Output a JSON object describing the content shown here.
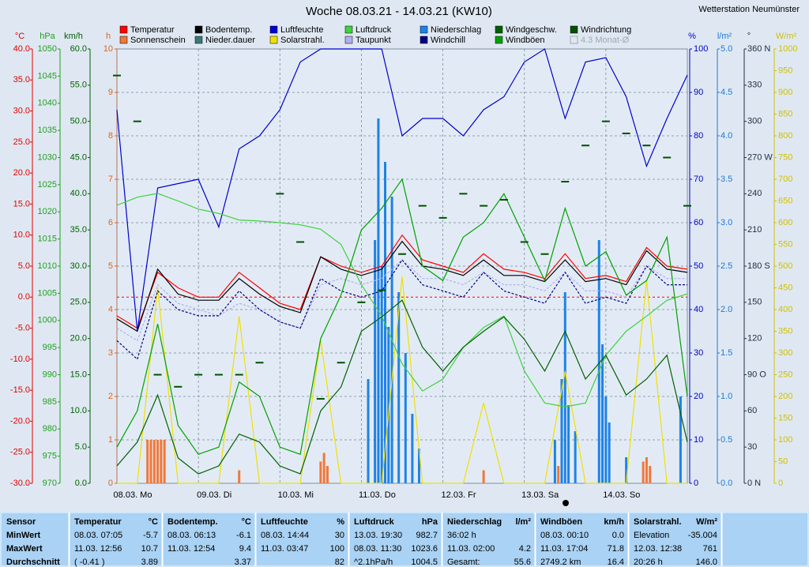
{
  "chart_data": {
    "type": "line",
    "title": "Woche 08.03.21 - 14.03.21 (KW10)",
    "subtitle": "Wetterstation Neumünster",
    "legend_extra": "4.3 Monat-Ø",
    "xlim": [
      0,
      168
    ],
    "xticks": [
      {
        "value": 0,
        "label": "08.03. Mo"
      },
      {
        "value": 24,
        "label": "09.03. Di"
      },
      {
        "value": 48,
        "label": "10.03. Mi"
      },
      {
        "value": 72,
        "label": "11.03. Do"
      },
      {
        "value": 96,
        "label": "12.03. Fr"
      },
      {
        "value": 120,
        "label": "13.03. Sa"
      },
      {
        "value": 144,
        "label": "14.03. So"
      }
    ],
    "x": [
      0,
      6,
      12,
      18,
      24,
      30,
      36,
      42,
      48,
      54,
      60,
      66,
      72,
      78,
      84,
      90,
      96,
      102,
      108,
      114,
      120,
      126,
      132,
      138,
      144,
      150,
      156,
      162,
      168
    ],
    "axes": [
      {
        "unit": "°C",
        "color": "#e00000",
        "lim": [
          -30,
          40
        ],
        "ticks": [
          {
            "value": -30,
            "label": "-30.0"
          },
          {
            "value": -25,
            "label": "-25.0"
          },
          {
            "value": -20,
            "label": "-20.0"
          },
          {
            "value": -15,
            "label": "-15.0"
          },
          {
            "value": -10,
            "label": "-10.0"
          },
          {
            "value": -5,
            "label": "-5.0"
          },
          {
            "value": 0,
            "label": "0.0"
          },
          {
            "value": 5,
            "label": "5.0"
          },
          {
            "value": 10,
            "label": "10.0"
          },
          {
            "value": 15,
            "label": "15.0"
          },
          {
            "value": 20,
            "label": "20.0"
          },
          {
            "value": 25,
            "label": "25.0"
          },
          {
            "value": 30,
            "label": "30.0"
          },
          {
            "value": 35,
            "label": "35.0"
          },
          {
            "value": 40,
            "label": "40.0"
          }
        ]
      },
      {
        "unit": "hPa",
        "color": "#20a020",
        "lim": [
          970,
          1050
        ],
        "ticks": [
          970,
          975,
          980,
          985,
          990,
          995,
          1000,
          1005,
          1010,
          1015,
          1020,
          1025,
          1030,
          1035,
          1040,
          1045,
          1050
        ]
      },
      {
        "unit": "km/h",
        "color": "#006000",
        "lim": [
          0,
          60
        ],
        "ticks": [
          {
            "value": 0,
            "label": "0.0"
          },
          {
            "value": 5,
            "label": "5.0"
          },
          {
            "value": 10,
            "label": "10.0"
          },
          {
            "value": 15,
            "label": "15.0"
          },
          {
            "value": 20,
            "label": "20.0"
          },
          {
            "value": 25,
            "label": "25.0"
          },
          {
            "value": 30,
            "label": "30.0"
          },
          {
            "value": 35,
            "label": "35.0"
          },
          {
            "value": 40,
            "label": "40.0"
          },
          {
            "value": 45,
            "label": "45.0"
          },
          {
            "value": 50,
            "label": "50.0"
          },
          {
            "value": 55,
            "label": "55.0"
          },
          {
            "value": 60,
            "label": "60.0"
          }
        ]
      },
      {
        "unit": "h",
        "color": "#e06020",
        "lim": [
          0,
          10
        ],
        "ticks": [
          0,
          1,
          2,
          3,
          4,
          5,
          6,
          7,
          8,
          9,
          10
        ],
        "grid": true
      },
      {
        "unit": "%",
        "color": "#0000c0",
        "lim": [
          0,
          100
        ],
        "ticks": [
          0,
          10,
          20,
          30,
          40,
          50,
          60,
          70,
          80,
          90,
          100
        ]
      },
      {
        "unit": "l/m²",
        "color": "#1e78d8",
        "lim": [
          0,
          5
        ],
        "ticks": [
          {
            "value": 0,
            "label": "0.0"
          },
          {
            "value": 0.5,
            "label": "0.5"
          },
          {
            "value": 1,
            "label": "1.0"
          },
          {
            "value": 1.5,
            "label": "1.5"
          },
          {
            "value": 2,
            "label": "2.0"
          },
          {
            "value": 2.5,
            "label": "2.5"
          },
          {
            "value": 3,
            "label": "3.0"
          },
          {
            "value": 3.5,
            "label": "3.5"
          },
          {
            "value": 4,
            "label": "4.0"
          },
          {
            "value": 4.5,
            "label": "4.5"
          },
          {
            "value": 5,
            "label": "5.0"
          }
        ]
      },
      {
        "unit": "°",
        "color": "#203040",
        "lim": [
          0,
          360
        ],
        "ticks": [
          {
            "value": 0,
            "label": "0 N"
          },
          30,
          60,
          {
            "value": 90,
            "label": "90 O"
          },
          120,
          150,
          {
            "value": 180,
            "label": "180 S"
          },
          210,
          240,
          {
            "value": 270,
            "label": "270 W"
          },
          300,
          330,
          {
            "value": 360,
            "label": "360 N"
          }
        ]
      },
      {
        "unit": "W/m²",
        "color": "#d0c000",
        "lim": [
          0,
          1000
        ],
        "ticks": [
          0,
          50,
          100,
          150,
          200,
          250,
          300,
          350,
          400,
          450,
          500,
          550,
          600,
          650,
          700,
          750,
          800,
          850,
          900,
          950,
          1000
        ]
      }
    ],
    "series": [
      {
        "name": "Temperatur",
        "color": "#ff0000",
        "type": "line",
        "axis": "°C",
        "values": [
          -3,
          -5,
          4,
          1.5,
          0,
          0,
          4,
          1.5,
          -1,
          -2,
          6.5,
          5,
          4,
          5,
          10,
          6,
          5,
          4,
          7,
          4.5,
          4,
          3,
          7,
          3,
          3.5,
          2.5,
          8,
          5,
          4.5
        ]
      },
      {
        "name": "Sonnenschein",
        "color": "#f07838",
        "type": "bar",
        "axis": "h",
        "x": [
          9,
          10,
          11,
          12,
          13,
          14,
          36,
          60,
          61,
          62,
          108,
          130,
          155,
          156,
          157
        ],
        "values": [
          1,
          1,
          1,
          1,
          1,
          1,
          0.3,
          0.5,
          0.7,
          0.4,
          0.3,
          0.4,
          0.5,
          0.6,
          0.4
        ]
      },
      {
        "name": "Bodentemp.",
        "color": "#000000",
        "type": "line",
        "axis": "°C",
        "values": [
          -3.5,
          -5.5,
          4.5,
          0.5,
          -0.5,
          -0.5,
          3,
          0.5,
          -1.5,
          -2.5,
          6.5,
          4.5,
          3.5,
          4.5,
          9,
          5,
          4.5,
          3.5,
          6,
          3.5,
          3.5,
          2.5,
          6,
          2.5,
          3,
          2,
          7.5,
          4.5,
          4
        ]
      },
      {
        "name": "Nieder.dauer",
        "color": "#3c7878",
        "type": "bar",
        "axis": "h"
      },
      {
        "name": "Luftfeuchte",
        "color": "#0000d0",
        "type": "line",
        "axis": "%",
        "values": [
          86,
          35,
          68,
          69,
          70,
          59,
          77,
          80,
          86,
          97,
          100,
          100,
          100,
          100,
          80,
          84,
          84,
          80,
          86,
          89,
          97,
          100,
          84,
          97,
          98,
          89,
          73,
          84,
          94
        ]
      },
      {
        "name": "Solarstrahl.",
        "color": "#f0e000",
        "type": "line",
        "axis": "W/m²",
        "values": [
          0,
          0,
          450,
          0,
          0,
          0,
          385,
          0,
          0,
          0,
          330,
          0,
          0,
          0,
          476,
          0,
          0,
          0,
          185,
          0,
          0,
          0,
          258,
          0,
          0,
          0,
          467,
          0,
          0
        ]
      },
      {
        "name": "Luftdruck",
        "color": "#40d040",
        "type": "line",
        "axis": "hPa",
        "values": [
          1021.2,
          1022.7,
          1023.4,
          1022,
          1020.5,
          1019.7,
          1018.5,
          1018.3,
          1018,
          1017.6,
          1016.8,
          1014,
          1006.6,
          1000.8,
          992,
          987,
          989.2,
          995,
          998.7,
          1000.8,
          990.7,
          984.8,
          984.1,
          984.8,
          993.6,
          998,
          1000.8,
          1003.7,
          1004.9
        ]
      },
      {
        "name": "Taupunkt",
        "color": "#b0b0f0",
        "type": "line",
        "axis": "°C",
        "dashed": true,
        "values": [
          -5,
          -7,
          2,
          -1,
          -2,
          -3,
          -1,
          -2,
          -4,
          -5,
          2,
          3,
          2,
          3,
          6,
          3,
          3,
          2,
          4,
          2,
          2,
          1,
          4,
          1,
          1,
          0,
          5,
          3,
          3
        ]
      },
      {
        "name": "Niederschlag",
        "color": "#1e82e6",
        "type": "bar",
        "axis": "l/m²",
        "x": [
          74,
          76,
          77,
          78,
          79,
          80,
          81,
          83,
          85,
          87,
          89,
          129,
          131,
          132,
          133,
          135,
          142,
          143,
          144,
          145,
          150,
          166
        ],
        "values": [
          1.2,
          2.8,
          4.2,
          2.5,
          3.7,
          1.8,
          3.3,
          2.2,
          1.5,
          0.8,
          0.4,
          0.5,
          1.2,
          2.2,
          0.9,
          0.6,
          2.8,
          1.6,
          1,
          0.7,
          0.3,
          1
        ]
      },
      {
        "name": "Windchill",
        "color": "#000080",
        "type": "line",
        "axis": "°C",
        "dashed": true,
        "values": [
          -7,
          -10,
          1,
          -2,
          -3,
          -3,
          1,
          -2,
          -4,
          -5,
          3,
          1,
          0,
          1,
          6,
          2,
          1,
          0,
          4,
          1,
          0,
          -1,
          4,
          -1,
          0,
          -1,
          5,
          2,
          2
        ]
      },
      {
        "name": "Windgeschw.",
        "color": "#006000",
        "type": "line",
        "axis": "km/h",
        "values": [
          2.4,
          5.7,
          12.2,
          3.5,
          1.3,
          2.4,
          6.8,
          5.7,
          2.4,
          1.3,
          10,
          13.3,
          21,
          23,
          25.3,
          18.8,
          15.5,
          18.8,
          21,
          23,
          19.9,
          15.5,
          21,
          14.4,
          17.7,
          12.2,
          14.4,
          17.7,
          5.7
        ]
      },
      {
        "name": "Windböen",
        "color": "#00a000",
        "type": "line",
        "axis": "km/h",
        "values": [
          5,
          10,
          22,
          8,
          4,
          5,
          14,
          12,
          5,
          4,
          20,
          26,
          35,
          38,
          42,
          30,
          28,
          34,
          36,
          40,
          34,
          28,
          38,
          30,
          32,
          26,
          28,
          34,
          12
        ]
      },
      {
        "name": "Windrichtung",
        "color": "#005000",
        "type": "dots",
        "axis": "°",
        "values": [
          338,
          300,
          90,
          80,
          90,
          90,
          90,
          100,
          240,
          200,
          70,
          100,
          150,
          160,
          190,
          230,
          220,
          240,
          230,
          235,
          200,
          190,
          250,
          280,
          300,
          290,
          280,
          270,
          230
        ]
      }
    ]
  },
  "table": {
    "sensor_header": "Sensor",
    "row_labels": [
      "MinWert",
      "MaxWert",
      "Durchschnitt"
    ],
    "groups": [
      {
        "name": "Temperatur",
        "unit": "°C",
        "rows": [
          [
            "08.03. 07:05",
            "-5.7"
          ],
          [
            "11.03. 12:56",
            "10.7"
          ],
          [
            "( -0.41 )",
            "3.89"
          ]
        ]
      },
      {
        "name": "Bodentemp.",
        "unit": "°C",
        "rows": [
          [
            "08.03. 06:13",
            "-6.1"
          ],
          [
            "11.03. 12:54",
            "9.4"
          ],
          [
            null,
            "3.37"
          ]
        ]
      },
      {
        "name": "Luftfeuchte",
        "unit": "%",
        "rows": [
          [
            "08.03. 14:44",
            "30"
          ],
          [
            "11.03. 03:47",
            "100"
          ],
          [
            null,
            "82"
          ]
        ]
      },
      {
        "name": "Luftdruck",
        "unit": "hPa",
        "rows": [
          [
            "13.03. 19:30",
            "982.7"
          ],
          [
            "08.03. 11:30",
            "1023.6"
          ],
          [
            "^2.1hPa/h",
            "1004.5"
          ]
        ]
      },
      {
        "name": "Niederschlag",
        "unit": "l/m²",
        "rows": [
          [
            "36:02 h",
            null
          ],
          [
            "11.03. 02:00",
            "4.2"
          ],
          [
            "Gesamt:",
            "55.6"
          ]
        ]
      },
      {
        "name": "Windböen",
        "unit": "km/h",
        "rows": [
          [
            "08.03. 00:10",
            "0.0"
          ],
          [
            "11.03. 17:04",
            "71.8"
          ],
          [
            "2749.2 km",
            "16.4"
          ]
        ]
      },
      {
        "name": "Solarstrahl.",
        "unit": "W/m²",
        "rows": [
          [
            "Elevation",
            "-35.004"
          ],
          [
            "12.03. 12:38",
            "761"
          ],
          [
            "20:26 h",
            "146.0"
          ]
        ]
      }
    ]
  }
}
